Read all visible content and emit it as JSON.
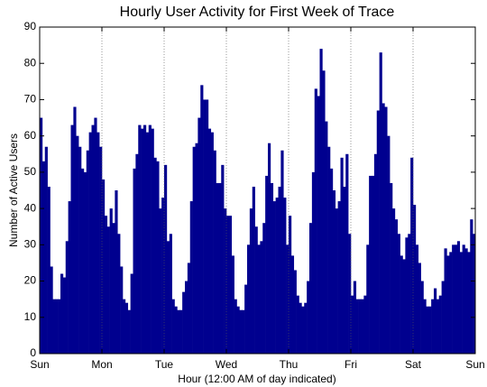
{
  "chart_data": {
    "type": "histogram",
    "title": "Hourly User Activity for First Week of Trace",
    "xlabel": "Hour (12:00 AM of day indicated)",
    "ylabel": "Number of Active Users",
    "color": "#00008f",
    "bins": [
      0,
      1,
      2,
      3,
      4,
      5,
      6,
      7,
      8,
      9,
      10,
      11,
      12,
      13,
      14,
      15,
      16,
      17,
      18,
      19,
      20,
      21,
      22,
      23,
      24,
      25,
      26,
      27,
      28,
      29,
      30,
      31,
      32,
      33,
      34,
      35,
      36,
      37,
      38,
      39,
      40,
      41,
      42,
      43,
      44,
      45,
      46,
      47,
      48,
      49,
      50,
      51,
      52,
      53,
      54,
      55,
      56,
      57,
      58,
      59,
      60,
      61,
      62,
      63,
      64,
      65,
      66,
      67,
      68,
      69,
      70,
      71,
      72,
      73,
      74,
      75,
      76,
      77,
      78,
      79,
      80,
      81,
      82,
      83,
      84,
      85,
      86,
      87,
      88,
      89,
      90,
      91,
      92,
      93,
      94,
      95,
      96,
      97,
      98,
      99,
      100,
      101,
      102,
      103,
      104,
      105,
      106,
      107,
      108,
      109,
      110,
      111,
      112,
      113,
      114,
      115,
      116,
      117,
      118,
      119,
      120,
      121,
      122,
      123,
      124,
      125,
      126,
      127,
      128,
      129,
      130,
      131,
      132,
      133,
      134,
      135,
      136,
      137,
      138,
      139,
      140,
      141,
      142,
      143,
      144,
      145,
      146,
      147,
      148,
      149,
      150,
      151,
      152,
      153,
      154,
      155,
      156,
      157,
      158,
      159,
      160,
      161,
      162,
      163,
      164,
      165,
      166,
      167,
      168
    ],
    "values": [
      65,
      53,
      57,
      46,
      24,
      15,
      15,
      15,
      22,
      21,
      31,
      42,
      63,
      68,
      60,
      57,
      51,
      50,
      56,
      61,
      63,
      65,
      61,
      57,
      48,
      38,
      35,
      40,
      36,
      45,
      33,
      24,
      15,
      14,
      12,
      22,
      51,
      55,
      63,
      62,
      63,
      61,
      63,
      62,
      54,
      53,
      40,
      43,
      52,
      31,
      33,
      15,
      13,
      12,
      12,
      17,
      20,
      25,
      42,
      57,
      58,
      65,
      74,
      70,
      70,
      62,
      61,
      56,
      47,
      47,
      52,
      40,
      38,
      38,
      27,
      15,
      13,
      12,
      12,
      19,
      30,
      40,
      46,
      35,
      30,
      31,
      36,
      49,
      58,
      47,
      42,
      43,
      46,
      56,
      43,
      30,
      38,
      27,
      23,
      16,
      14,
      13,
      14,
      20,
      36,
      50,
      73,
      71,
      84,
      78,
      64,
      57,
      51,
      45,
      40,
      42,
      54,
      46,
      55,
      33,
      16,
      20,
      15,
      15,
      15,
      16,
      30,
      49,
      49,
      55,
      67,
      83,
      69,
      68,
      60,
      47,
      40,
      37,
      33,
      27,
      26,
      32,
      33,
      54,
      41,
      30,
      25,
      20,
      15,
      13,
      13,
      15,
      18,
      15,
      16,
      20,
      29,
      27,
      28,
      30,
      30,
      31,
      28,
      30,
      29,
      28,
      37,
      33
    ],
    "xlim": [
      0,
      168
    ],
    "xticks": [
      {
        "value": 0,
        "label": "Sun"
      },
      {
        "value": 24,
        "label": "Mon"
      },
      {
        "value": 48,
        "label": "Tue"
      },
      {
        "value": 72,
        "label": "Wed"
      },
      {
        "value": 96,
        "label": "Thu"
      },
      {
        "value": 120,
        "label": "Fri"
      },
      {
        "value": 144,
        "label": "Sat"
      },
      {
        "value": 168,
        "label": "Sun"
      }
    ],
    "ylim": [
      0,
      90
    ],
    "yticks": [
      0,
      10,
      20,
      30,
      40,
      50,
      60,
      70,
      80,
      90
    ],
    "grid_x": true
  }
}
